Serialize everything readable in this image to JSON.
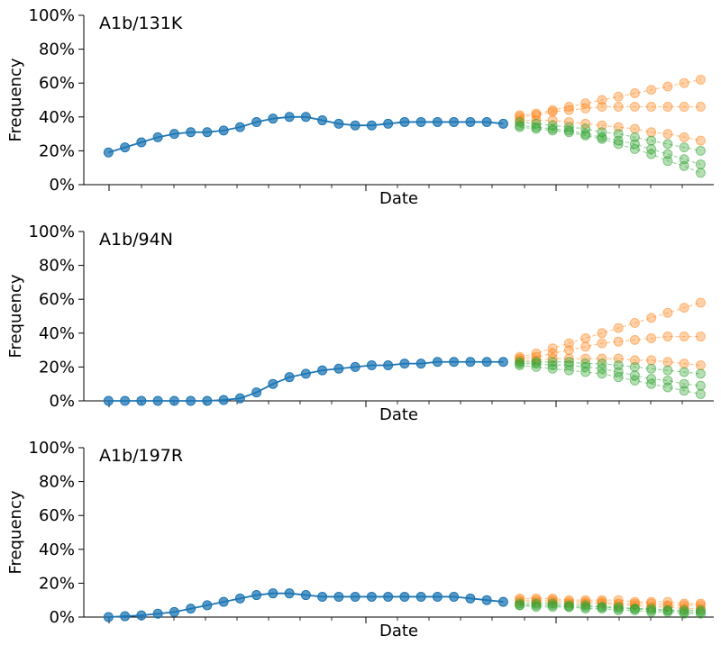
{
  "chart_data": [
    {
      "type": "line",
      "title": "A1b/131K",
      "xlabel": "Date",
      "ylabel": "Frequency",
      "ylim": [
        0,
        100
      ],
      "y_ticks": [
        "0%",
        "20%",
        "40%",
        "60%",
        "80%",
        "100%"
      ],
      "grid": false,
      "observed": {
        "color": "#1f77b4",
        "x": [
          0,
          1,
          2,
          3,
          4,
          5,
          6,
          7,
          8,
          9,
          10,
          11,
          12,
          13,
          14,
          15,
          16,
          17,
          18,
          19,
          20,
          21,
          22,
          23,
          24
        ],
        "values": [
          19,
          22,
          25,
          28,
          30,
          31,
          31,
          32,
          34,
          37,
          39,
          40,
          40,
          38,
          36,
          35,
          35,
          36,
          37,
          37,
          37,
          37,
          37,
          37,
          36
        ]
      },
      "forecasts": [
        {
          "color": "#ff7f0e",
          "x": [
            25,
            26,
            27,
            28,
            29,
            30,
            31,
            32,
            33,
            34,
            35,
            36
          ],
          "values": [
            41,
            42,
            44,
            46,
            48,
            50,
            52,
            54,
            56,
            58,
            60,
            62
          ]
        },
        {
          "color": "#ff7f0e",
          "x": [
            25,
            26,
            27,
            28,
            29,
            30,
            31,
            32,
            33,
            34,
            35,
            36
          ],
          "values": [
            40,
            41,
            43,
            44,
            45,
            46,
            46,
            46,
            46,
            46,
            46,
            46
          ]
        },
        {
          "color": "#ff7f0e",
          "x": [
            25,
            26,
            27,
            28,
            29,
            30,
            31,
            32,
            33,
            34,
            35,
            36
          ],
          "values": [
            38,
            38,
            38,
            37,
            36,
            35,
            34,
            33,
            31,
            30,
            28,
            26
          ]
        },
        {
          "color": "#2ca02c",
          "x": [
            25,
            26,
            27,
            28,
            29,
            30,
            31,
            32,
            33,
            34,
            35,
            36
          ],
          "values": [
            37,
            36,
            35,
            34,
            33,
            31,
            30,
            28,
            26,
            24,
            22,
            20
          ]
        },
        {
          "color": "#2ca02c",
          "x": [
            25,
            26,
            27,
            28,
            29,
            30,
            31,
            32,
            33,
            34,
            35,
            36
          ],
          "values": [
            35,
            34,
            33,
            32,
            30,
            28,
            26,
            24,
            21,
            18,
            15,
            12
          ]
        },
        {
          "color": "#2ca02c",
          "x": [
            25,
            26,
            27,
            28,
            29,
            30,
            31,
            32,
            33,
            34,
            35,
            36
          ],
          "values": [
            34,
            33,
            32,
            31,
            29,
            27,
            24,
            21,
            18,
            14,
            11,
            7
          ]
        }
      ]
    },
    {
      "type": "line",
      "title": "A1b/94N",
      "xlabel": "Date",
      "ylabel": "Frequency",
      "ylim": [
        0,
        100
      ],
      "y_ticks": [
        "0%",
        "20%",
        "40%",
        "60%",
        "80%",
        "100%"
      ],
      "grid": false,
      "observed": {
        "color": "#1f77b4",
        "x": [
          0,
          1,
          2,
          3,
          4,
          5,
          6,
          7,
          8,
          9,
          10,
          11,
          12,
          13,
          14,
          15,
          16,
          17,
          18,
          19,
          20,
          21,
          22,
          23,
          24
        ],
        "values": [
          0,
          0,
          0,
          0,
          0,
          0,
          0,
          0.5,
          1.5,
          5,
          10,
          14,
          16,
          18,
          19,
          20,
          21,
          21,
          22,
          22,
          23,
          23,
          23,
          23,
          23
        ]
      },
      "forecasts": [
        {
          "color": "#ff7f0e",
          "x": [
            25,
            26,
            27,
            28,
            29,
            30,
            31,
            32,
            33,
            34,
            35,
            36
          ],
          "values": [
            26,
            28,
            31,
            34,
            37,
            40,
            43,
            46,
            49,
            52,
            55,
            58
          ]
        },
        {
          "color": "#ff7f0e",
          "x": [
            25,
            26,
            27,
            28,
            29,
            30,
            31,
            32,
            33,
            34,
            35,
            36
          ],
          "values": [
            25,
            26,
            28,
            30,
            32,
            34,
            35,
            36,
            37,
            38,
            38,
            38
          ]
        },
        {
          "color": "#ff7f0e",
          "x": [
            25,
            26,
            27,
            28,
            29,
            30,
            31,
            32,
            33,
            34,
            35,
            36
          ],
          "values": [
            24,
            24,
            25,
            25,
            25,
            25,
            25,
            24,
            24,
            23,
            22,
            21
          ]
        },
        {
          "color": "#2ca02c",
          "x": [
            25,
            26,
            27,
            28,
            29,
            30,
            31,
            32,
            33,
            34,
            35,
            36
          ],
          "values": [
            23,
            23,
            23,
            23,
            22,
            22,
            21,
            20,
            19,
            18,
            17,
            16
          ]
        },
        {
          "color": "#2ca02c",
          "x": [
            25,
            26,
            27,
            28,
            29,
            30,
            31,
            32,
            33,
            34,
            35,
            36
          ],
          "values": [
            22,
            22,
            21,
            21,
            20,
            19,
            17,
            15,
            13,
            12,
            10,
            9
          ]
        },
        {
          "color": "#2ca02c",
          "x": [
            25,
            26,
            27,
            28,
            29,
            30,
            31,
            32,
            33,
            34,
            35,
            36
          ],
          "values": [
            21,
            20,
            19,
            18,
            17,
            16,
            14,
            12,
            10,
            8,
            6,
            4
          ]
        }
      ]
    },
    {
      "type": "line",
      "title": "A1b/197R",
      "xlabel": "Date",
      "ylabel": "Frequency",
      "ylim": [
        0,
        100
      ],
      "y_ticks": [
        "0%",
        "20%",
        "40%",
        "60%",
        "80%",
        "100%"
      ],
      "grid": false,
      "observed": {
        "color": "#1f77b4",
        "x": [
          0,
          1,
          2,
          3,
          4,
          5,
          6,
          7,
          8,
          9,
          10,
          11,
          12,
          13,
          14,
          15,
          16,
          17,
          18,
          19,
          20,
          21,
          22,
          23,
          24
        ],
        "values": [
          0,
          0.5,
          1,
          2,
          3,
          5,
          7,
          9,
          11,
          13,
          14,
          14,
          13,
          12,
          12,
          12,
          12,
          12,
          12,
          12,
          12,
          12,
          11,
          10,
          9
        ]
      },
      "forecasts": [
        {
          "color": "#ff7f0e",
          "x": [
            25,
            26,
            27,
            28,
            29,
            30,
            31,
            32,
            33,
            34,
            35,
            36
          ],
          "values": [
            11,
            11,
            11,
            10,
            10,
            10,
            10,
            9,
            9,
            9,
            8,
            8
          ]
        },
        {
          "color": "#ff7f0e",
          "x": [
            25,
            26,
            27,
            28,
            29,
            30,
            31,
            32,
            33,
            34,
            35,
            36
          ],
          "values": [
            10,
            10,
            10,
            9,
            9,
            9,
            8,
            8,
            8,
            7,
            7,
            7
          ]
        },
        {
          "color": "#ff7f0e",
          "x": [
            25,
            26,
            27,
            28,
            29,
            30,
            31,
            32,
            33,
            34,
            35,
            36
          ],
          "values": [
            9,
            9,
            9,
            8,
            8,
            8,
            7,
            7,
            6,
            6,
            5,
            5
          ]
        },
        {
          "color": "#2ca02c",
          "x": [
            25,
            26,
            27,
            28,
            29,
            30,
            31,
            32,
            33,
            34,
            35,
            36
          ],
          "values": [
            8,
            8,
            8,
            7,
            7,
            6,
            6,
            5,
            5,
            4,
            4,
            4
          ]
        },
        {
          "color": "#2ca02c",
          "x": [
            25,
            26,
            27,
            28,
            29,
            30,
            31,
            32,
            33,
            34,
            35,
            36
          ],
          "values": [
            7,
            7,
            7,
            6,
            6,
            6,
            5,
            5,
            4,
            4,
            3,
            3
          ]
        },
        {
          "color": "#2ca02c",
          "x": [
            25,
            26,
            27,
            28,
            29,
            30,
            31,
            32,
            33,
            34,
            35,
            36
          ],
          "values": [
            7,
            6,
            6,
            6,
            5,
            5,
            4,
            4,
            3,
            3,
            2,
            2
          ]
        }
      ]
    }
  ]
}
